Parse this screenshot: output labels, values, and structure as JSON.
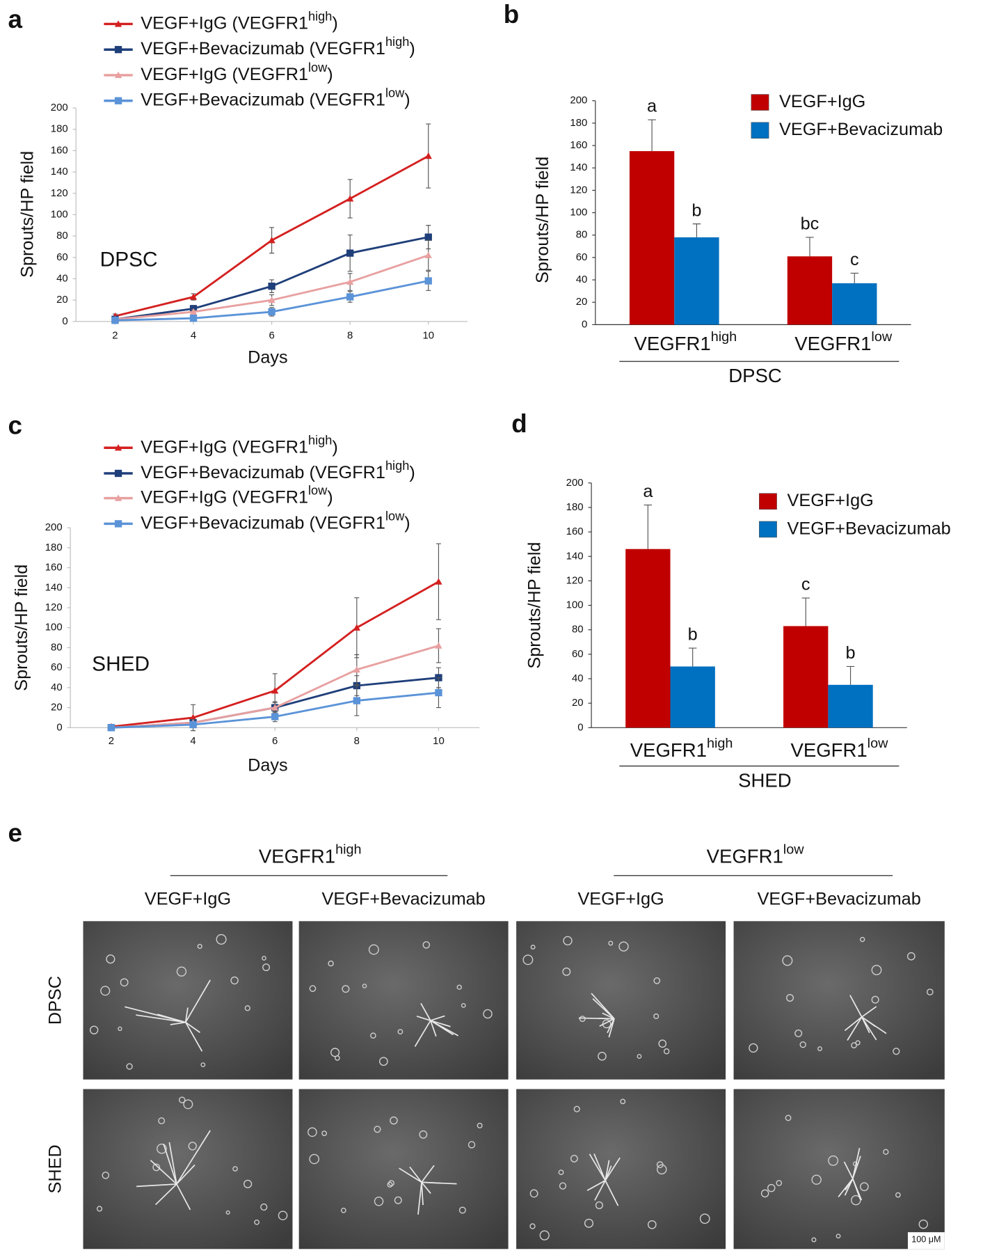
{
  "chart_data": [
    {
      "type": "line",
      "panel_label": "a",
      "annotation": "DPSC",
      "x_label": "Days",
      "y_label": "Sprouts/HP field",
      "x": [
        2,
        4,
        6,
        8,
        10
      ],
      "xlim": [
        1,
        11
      ],
      "xticks": [
        2,
        4,
        6,
        8,
        10
      ],
      "ylim": [
        0,
        200
      ],
      "yticks": [
        0,
        20,
        40,
        60,
        80,
        100,
        120,
        140,
        160,
        180,
        200
      ],
      "series": [
        {
          "name": "VEGF+IgG (VEGFR1high)",
          "color": "#d42020",
          "marker": "triangle",
          "values": [
            5,
            23,
            76,
            115,
            155
          ],
          "errors": [
            2,
            3,
            12,
            18,
            30
          ]
        },
        {
          "name": "VEGF+Bevacizumab (VEGFR1high)",
          "color": "#1f3f7a",
          "marker": "square",
          "values": [
            2,
            12,
            33,
            64,
            79
          ],
          "errors": [
            1,
            3,
            6,
            17,
            11
          ]
        },
        {
          "name": "VEGF+IgG (VEGFR1low)",
          "color": "#e8a0a0",
          "marker": "triangle",
          "values": [
            2,
            9,
            20,
            37,
            62
          ],
          "errors": [
            1,
            2,
            5,
            8,
            14
          ]
        },
        {
          "name": "VEGF+Bevacizumab (VEGFR1low)",
          "color": "#5b93d8",
          "marker": "square",
          "values": [
            1,
            3,
            9,
            23,
            38
          ],
          "errors": [
            1,
            2,
            4,
            5,
            9
          ]
        }
      ]
    },
    {
      "type": "bar",
      "panel_label": "b",
      "y_label": "Sprouts/HP field",
      "group_label": "DPSC",
      "categories": [
        "VEGFR1high",
        "VEGFR1low"
      ],
      "ylim": [
        0,
        200
      ],
      "yticks": [
        0,
        20,
        40,
        60,
        80,
        100,
        120,
        140,
        160,
        180,
        200
      ],
      "series": [
        {
          "name": "VEGF+IgG",
          "color": "#c00000",
          "values": [
            155,
            61
          ],
          "errors": [
            28,
            17
          ],
          "letters": [
            "a",
            "bc"
          ]
        },
        {
          "name": "VEGF+Bevacizumab",
          "color": "#0070c0",
          "values": [
            78,
            37
          ],
          "errors": [
            12,
            9
          ],
          "letters": [
            "b",
            "c"
          ]
        }
      ]
    },
    {
      "type": "line",
      "panel_label": "c",
      "annotation": "SHED",
      "x_label": "Days",
      "y_label": "Sprouts/HP field",
      "x": [
        2,
        4,
        6,
        8,
        10
      ],
      "xlim": [
        1,
        11
      ],
      "xticks": [
        2,
        4,
        6,
        8,
        10
      ],
      "ylim": [
        0,
        200
      ],
      "yticks": [
        0,
        20,
        40,
        60,
        80,
        100,
        120,
        140,
        160,
        180,
        200
      ],
      "series": [
        {
          "name": "VEGF+IgG (VEGFR1high)",
          "color": "#d42020",
          "marker": "triangle",
          "values": [
            1,
            10,
            37,
            100,
            146
          ],
          "errors": [
            1,
            13,
            17,
            30,
            38
          ]
        },
        {
          "name": "VEGF+Bevacizumab (VEGFR1high)",
          "color": "#1f3f7a",
          "marker": "square",
          "values": [
            0,
            5,
            20,
            42,
            50
          ],
          "errors": [
            0,
            3,
            5,
            10,
            10
          ]
        },
        {
          "name": "VEGF+IgG (VEGFR1low)",
          "color": "#e8a0a0",
          "marker": "triangle",
          "values": [
            0,
            5,
            20,
            58,
            82
          ],
          "errors": [
            0,
            3,
            6,
            15,
            17
          ]
        },
        {
          "name": "VEGF+Bevacizumab (VEGFR1low)",
          "color": "#5b93d8",
          "marker": "square",
          "values": [
            0,
            3,
            11,
            27,
            35
          ],
          "errors": [
            0,
            2,
            5,
            15,
            15
          ]
        }
      ]
    },
    {
      "type": "bar",
      "panel_label": "d",
      "y_label": "Sprouts/HP field",
      "group_label": "SHED",
      "categories": [
        "VEGFR1high",
        "VEGFR1low"
      ],
      "ylim": [
        0,
        200
      ],
      "yticks": [
        0,
        20,
        40,
        60,
        80,
        100,
        120,
        140,
        160,
        180,
        200
      ],
      "series": [
        {
          "name": "VEGF+IgG",
          "color": "#c00000",
          "values": [
            146,
            83
          ],
          "errors": [
            36,
            23
          ],
          "letters": [
            "a",
            "c"
          ]
        },
        {
          "name": "VEGF+Bevacizumab",
          "color": "#0070c0",
          "values": [
            50,
            35
          ],
          "errors": [
            15,
            15
          ],
          "letters": [
            "b",
            "b"
          ]
        }
      ]
    }
  ],
  "panel_e": {
    "label": "e",
    "groups": [
      "VEGFR1high",
      "VEGFR1low"
    ],
    "columns": [
      "VEGF+IgG",
      "VEGF+Bevacizumab",
      "VEGF+IgG",
      "VEGF+Bevacizumab"
    ],
    "rows": [
      "DPSC",
      "SHED"
    ],
    "scale_bar": "100 μM"
  }
}
